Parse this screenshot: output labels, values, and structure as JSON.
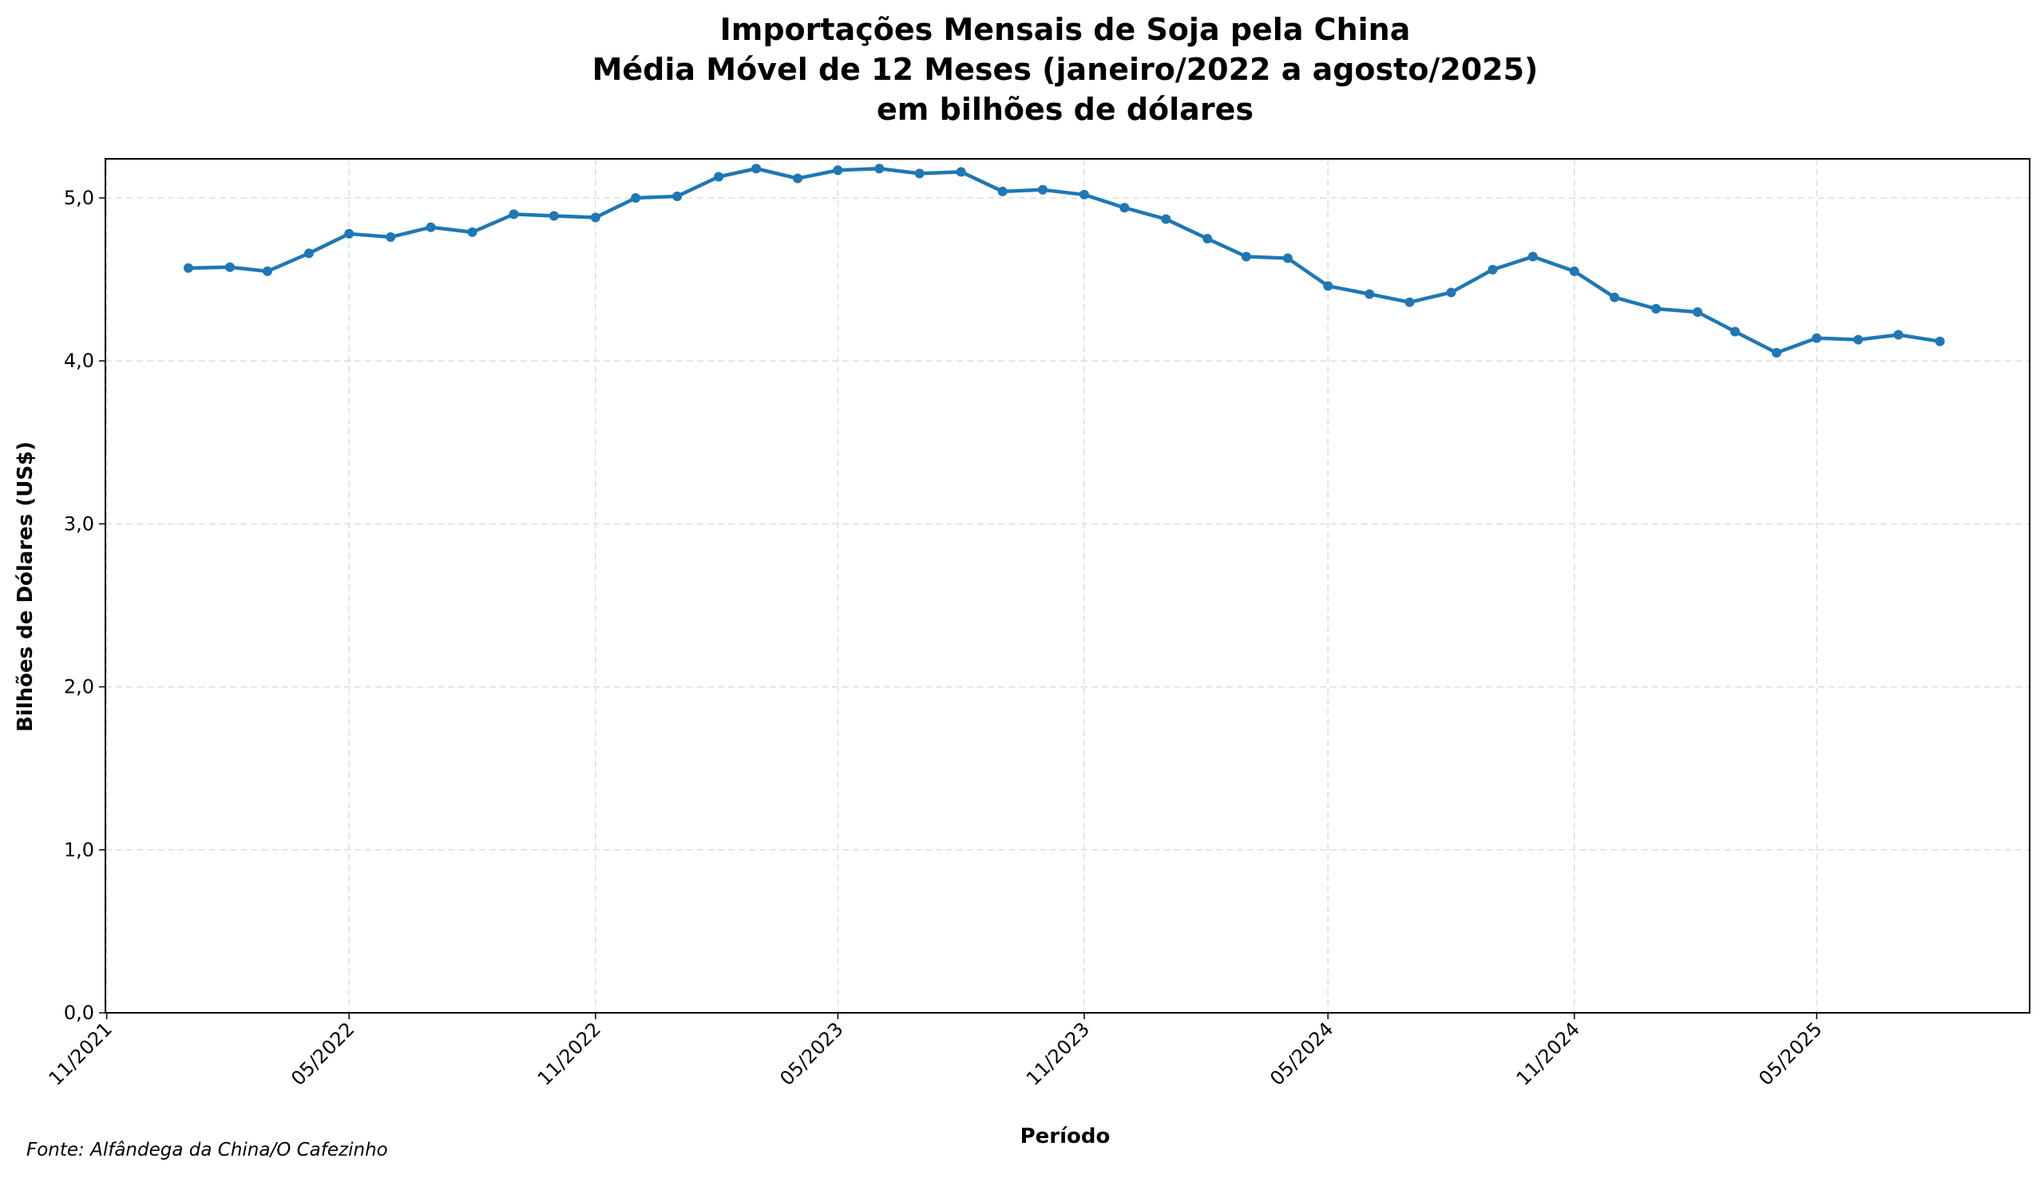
{
  "chart_data": {
    "type": "line",
    "title": [
      "Importações Mensais de Soja pela China",
      "Média Móvel de 12 Meses (janeiro/2022 a agosto/2025)",
      "em bilhões de dólares"
    ],
    "xlabel": "Período",
    "ylabel": "Bilhões de Dólares (US$)",
    "footer": "Fonte: Alfândega da China/O Cafezinho",
    "ylim": [
      0,
      5.24
    ],
    "xlim": [
      "2021-10-31",
      "2025-10-07"
    ],
    "grid": true,
    "color": "#1f77b4",
    "yticks": [
      {
        "value": 0,
        "label": "0,0"
      },
      {
        "value": 1,
        "label": "1,0"
      },
      {
        "value": 2,
        "label": "2,0"
      },
      {
        "value": 3,
        "label": "3,0"
      },
      {
        "value": 4,
        "label": "4,0"
      },
      {
        "value": 5,
        "label": "5,0"
      }
    ],
    "xticks": [
      {
        "date": "2021-11-01",
        "label": "11/2021"
      },
      {
        "date": "2022-05-01",
        "label": "05/2022"
      },
      {
        "date": "2022-11-01",
        "label": "11/2022"
      },
      {
        "date": "2023-05-01",
        "label": "05/2023"
      },
      {
        "date": "2023-11-01",
        "label": "11/2023"
      },
      {
        "date": "2024-05-01",
        "label": "05/2024"
      },
      {
        "date": "2024-11-01",
        "label": "11/2024"
      },
      {
        "date": "2025-05-01",
        "label": "05/2025"
      }
    ],
    "x": [
      "2022-01",
      "2022-02",
      "2022-03",
      "2022-04",
      "2022-05",
      "2022-06",
      "2022-07",
      "2022-08",
      "2022-09",
      "2022-10",
      "2022-11",
      "2022-12",
      "2023-01",
      "2023-02",
      "2023-03",
      "2023-04",
      "2023-05",
      "2023-06",
      "2023-07",
      "2023-08",
      "2023-09",
      "2023-10",
      "2023-11",
      "2023-12",
      "2024-01",
      "2024-02",
      "2024-03",
      "2024-04",
      "2024-05",
      "2024-06",
      "2024-07",
      "2024-08",
      "2024-09",
      "2024-10",
      "2024-11",
      "2024-12",
      "2025-01",
      "2025-02",
      "2025-03",
      "2025-04",
      "2025-05",
      "2025-06",
      "2025-07",
      "2025-08"
    ],
    "values": [
      4.57,
      4.575,
      4.55,
      4.66,
      4.78,
      4.76,
      4.82,
      4.79,
      4.9,
      4.89,
      4.88,
      5.0,
      5.01,
      5.13,
      5.18,
      5.12,
      5.17,
      5.18,
      5.15,
      5.16,
      5.04,
      5.05,
      5.02,
      4.94,
      4.87,
      4.75,
      4.64,
      4.63,
      4.46,
      4.41,
      4.36,
      4.42,
      4.56,
      4.64,
      4.55,
      4.39,
      4.32,
      4.3,
      4.18,
      4.05,
      4.14,
      4.13,
      4.16,
      4.12
    ]
  }
}
